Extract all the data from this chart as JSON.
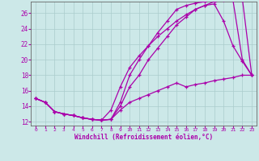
{
  "xlabel": "Windchill (Refroidissement éolien,°C)",
  "background_color": "#cce8e8",
  "grid_color": "#aacccc",
  "line_color": "#aa00aa",
  "xlim": [
    -0.5,
    23.5
  ],
  "ylim": [
    11.5,
    27.5
  ],
  "xticks": [
    0,
    1,
    2,
    3,
    4,
    5,
    6,
    7,
    8,
    9,
    10,
    11,
    12,
    13,
    14,
    15,
    16,
    17,
    18,
    19,
    20,
    21,
    22,
    23
  ],
  "yticks": [
    12,
    14,
    16,
    18,
    20,
    22,
    24,
    26
  ],
  "lines": [
    {
      "x": [
        0,
        1,
        2,
        3,
        4,
        5,
        6,
        7,
        8,
        9,
        10,
        11,
        12,
        13,
        14,
        15,
        16,
        17,
        18,
        19,
        20,
        21,
        22,
        23
      ],
      "y": [
        15.0,
        14.5,
        13.3,
        13.0,
        12.8,
        12.5,
        12.3,
        12.2,
        12.3,
        13.5,
        14.5,
        15.0,
        15.5,
        16.0,
        16.5,
        17.0,
        16.5,
        16.8,
        17.0,
        17.3,
        17.5,
        17.7,
        18.0,
        18.0
      ]
    },
    {
      "x": [
        0,
        1,
        2,
        3,
        4,
        5,
        6,
        7,
        8,
        9,
        10,
        11,
        12,
        13,
        14,
        15,
        16,
        17,
        18,
        19,
        20,
        21,
        22,
        23
      ],
      "y": [
        15.0,
        14.5,
        13.3,
        13.0,
        12.8,
        12.5,
        12.3,
        12.2,
        13.5,
        16.5,
        19.0,
        20.5,
        21.8,
        23.0,
        24.0,
        25.0,
        25.8,
        26.5,
        27.0,
        27.2,
        25.0,
        21.8,
        19.8,
        18.0
      ]
    },
    {
      "x": [
        0,
        1,
        2,
        3,
        4,
        5,
        6,
        7,
        8,
        9,
        10,
        11,
        12,
        13,
        14,
        15,
        16,
        17,
        18,
        19,
        20,
        21,
        22,
        23
      ],
      "y": [
        15.0,
        14.5,
        13.3,
        13.0,
        12.8,
        12.5,
        12.3,
        12.2,
        12.3,
        14.5,
        18.0,
        20.0,
        21.8,
        23.5,
        25.0,
        26.5,
        27.0,
        27.3,
        27.5,
        27.7,
        27.8,
        27.7,
        20.0,
        18.0
      ]
    },
    {
      "x": [
        0,
        1,
        2,
        3,
        4,
        5,
        6,
        7,
        8,
        9,
        10,
        11,
        12,
        13,
        14,
        15,
        16,
        17,
        18,
        19,
        20,
        21,
        22,
        23
      ],
      "y": [
        15.0,
        14.5,
        13.3,
        13.0,
        12.8,
        12.5,
        12.3,
        12.2,
        12.3,
        14.0,
        16.5,
        18.0,
        20.0,
        21.5,
        23.0,
        24.5,
        25.5,
        26.5,
        27.0,
        27.5,
        27.7,
        27.8,
        27.9,
        18.0
      ]
    }
  ]
}
